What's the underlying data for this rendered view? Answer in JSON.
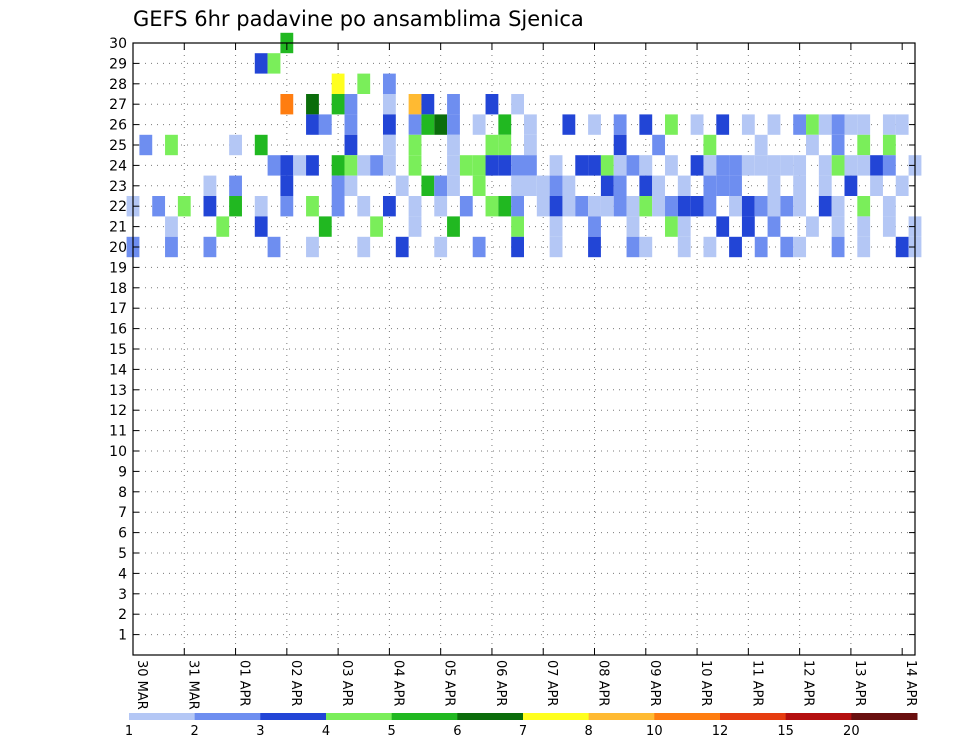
{
  "chart_data": {
    "type": "heatmap",
    "title": "GEFS 6hr padavine po ansamblima Sjenica",
    "x_tick_labels": [
      "30 MAR",
      "31 MAR",
      "01 APR",
      "02 APR",
      "03 APR",
      "04 APR",
      "05 APR",
      "06 APR",
      "07 APR",
      "08 APR",
      "09 APR",
      "10 APR",
      "11 APR",
      "12 APR",
      "13 APR",
      "14 APR"
    ],
    "x_range_hours": [
      0,
      366
    ],
    "y_tick_labels": [
      "1",
      "2",
      "3",
      "4",
      "5",
      "6",
      "7",
      "8",
      "9",
      "10",
      "11",
      "12",
      "13",
      "14",
      "15",
      "16",
      "17",
      "18",
      "19",
      "20",
      "21",
      "22",
      "23",
      "24",
      "25",
      "26",
      "27",
      "28",
      "29",
      "30"
    ],
    "y_range_members": [
      0,
      30
    ],
    "grid": "dotted",
    "legend_placement": "bottom",
    "legend_labels": [
      "1",
      "2",
      "3",
      "4",
      "5",
      "6",
      "7",
      "8",
      "10",
      "12",
      "15",
      "20"
    ],
    "legend_colors": [
      "#b4c7f5",
      "#6e8ef0",
      "#2245d6",
      "#7aee5a",
      "#21b821",
      "#0b6d0b",
      "#ffff1e",
      "#ffba32",
      "#ff7d10",
      "#e63c10",
      "#b40f0f",
      "#690f0f"
    ],
    "cells": [
      [
        72,
        30,
        4
      ],
      [
        60,
        29,
        2
      ],
      [
        66,
        29,
        3
      ],
      [
        96,
        28,
        6
      ],
      [
        108,
        28,
        3
      ],
      [
        120,
        28,
        1
      ],
      [
        72,
        27,
        8
      ],
      [
        84,
        27,
        5
      ],
      [
        96,
        27,
        4
      ],
      [
        102,
        27,
        1
      ],
      [
        120,
        27,
        0
      ],
      [
        132,
        27,
        7
      ],
      [
        138,
        27,
        2
      ],
      [
        150,
        27,
        1
      ],
      [
        168,
        27,
        2
      ],
      [
        180,
        27,
        0
      ],
      [
        84,
        26,
        2
      ],
      [
        90,
        26,
        1
      ],
      [
        102,
        26,
        1
      ],
      [
        120,
        26,
        2
      ],
      [
        132,
        26,
        1
      ],
      [
        138,
        26,
        4
      ],
      [
        144,
        26,
        5
      ],
      [
        150,
        26,
        1
      ],
      [
        162,
        26,
        0
      ],
      [
        174,
        26,
        4
      ],
      [
        186,
        26,
        0
      ],
      [
        204,
        26,
        2
      ],
      [
        216,
        26,
        0
      ],
      [
        228,
        26,
        1
      ],
      [
        240,
        26,
        2
      ],
      [
        252,
        26,
        3
      ],
      [
        264,
        26,
        0
      ],
      [
        276,
        26,
        2
      ],
      [
        288,
        26,
        0
      ],
      [
        300,
        26,
        0
      ],
      [
        312,
        26,
        1
      ],
      [
        318,
        26,
        3
      ],
      [
        324,
        26,
        0
      ],
      [
        330,
        26,
        1
      ],
      [
        336,
        26,
        0
      ],
      [
        342,
        26,
        0
      ],
      [
        354,
        26,
        0
      ],
      [
        360,
        26,
        0
      ],
      [
        6,
        25,
        1
      ],
      [
        18,
        25,
        3
      ],
      [
        48,
        25,
        0
      ],
      [
        60,
        25,
        4
      ],
      [
        102,
        25,
        2
      ],
      [
        120,
        25,
        0
      ],
      [
        132,
        25,
        3
      ],
      [
        150,
        25,
        0
      ],
      [
        168,
        25,
        3
      ],
      [
        174,
        25,
        3
      ],
      [
        186,
        25,
        0
      ],
      [
        228,
        25,
        2
      ],
      [
        246,
        25,
        1
      ],
      [
        270,
        25,
        3
      ],
      [
        294,
        25,
        0
      ],
      [
        318,
        25,
        0
      ],
      [
        330,
        25,
        1
      ],
      [
        342,
        25,
        3
      ],
      [
        354,
        25,
        3
      ],
      [
        66,
        24,
        1
      ],
      [
        72,
        24,
        2
      ],
      [
        78,
        24,
        0
      ],
      [
        84,
        24,
        2
      ],
      [
        96,
        24,
        4
      ],
      [
        102,
        24,
        3
      ],
      [
        108,
        24,
        0
      ],
      [
        114,
        24,
        1
      ],
      [
        120,
        24,
        0
      ],
      [
        132,
        24,
        3
      ],
      [
        150,
        24,
        0
      ],
      [
        156,
        24,
        3
      ],
      [
        162,
        24,
        3
      ],
      [
        168,
        24,
        2
      ],
      [
        174,
        24,
        2
      ],
      [
        180,
        24,
        1
      ],
      [
        186,
        24,
        1
      ],
      [
        198,
        24,
        0
      ],
      [
        210,
        24,
        2
      ],
      [
        216,
        24,
        2
      ],
      [
        222,
        24,
        3
      ],
      [
        228,
        24,
        0
      ],
      [
        234,
        24,
        1
      ],
      [
        240,
        24,
        0
      ],
      [
        252,
        24,
        0
      ],
      [
        264,
        24,
        2
      ],
      [
        270,
        24,
        0
      ],
      [
        276,
        24,
        1
      ],
      [
        282,
        24,
        1
      ],
      [
        288,
        24,
        0
      ],
      [
        294,
        24,
        0
      ],
      [
        300,
        24,
        0
      ],
      [
        306,
        24,
        0
      ],
      [
        312,
        24,
        0
      ],
      [
        324,
        24,
        0
      ],
      [
        330,
        24,
        3
      ],
      [
        336,
        24,
        0
      ],
      [
        342,
        24,
        0
      ],
      [
        348,
        24,
        2
      ],
      [
        354,
        24,
        1
      ],
      [
        366,
        24,
        0
      ],
      [
        36,
        23,
        0
      ],
      [
        48,
        23,
        1
      ],
      [
        72,
        23,
        2
      ],
      [
        96,
        23,
        1
      ],
      [
        102,
        23,
        0
      ],
      [
        126,
        23,
        0
      ],
      [
        138,
        23,
        4
      ],
      [
        144,
        23,
        1
      ],
      [
        150,
        23,
        0
      ],
      [
        162,
        23,
        3
      ],
      [
        180,
        23,
        0
      ],
      [
        186,
        23,
        0
      ],
      [
        192,
        23,
        0
      ],
      [
        198,
        23,
        1
      ],
      [
        204,
        23,
        0
      ],
      [
        222,
        23,
        2
      ],
      [
        228,
        23,
        1
      ],
      [
        240,
        23,
        2
      ],
      [
        246,
        23,
        0
      ],
      [
        258,
        23,
        0
      ],
      [
        270,
        23,
        1
      ],
      [
        276,
        23,
        1
      ],
      [
        282,
        23,
        1
      ],
      [
        300,
        23,
        0
      ],
      [
        312,
        23,
        0
      ],
      [
        324,
        23,
        0
      ],
      [
        336,
        23,
        2
      ],
      [
        348,
        23,
        0
      ],
      [
        360,
        23,
        0
      ],
      [
        0,
        22,
        0
      ],
      [
        12,
        22,
        1
      ],
      [
        24,
        22,
        3
      ],
      [
        36,
        22,
        2
      ],
      [
        48,
        22,
        4
      ],
      [
        60,
        22,
        0
      ],
      [
        72,
        22,
        1
      ],
      [
        84,
        22,
        3
      ],
      [
        96,
        22,
        1
      ],
      [
        108,
        22,
        0
      ],
      [
        120,
        22,
        2
      ],
      [
        132,
        22,
        0
      ],
      [
        144,
        22,
        0
      ],
      [
        156,
        22,
        1
      ],
      [
        168,
        22,
        3
      ],
      [
        174,
        22,
        4
      ],
      [
        180,
        22,
        1
      ],
      [
        192,
        22,
        0
      ],
      [
        198,
        22,
        2
      ],
      [
        204,
        22,
        0
      ],
      [
        210,
        22,
        1
      ],
      [
        216,
        22,
        0
      ],
      [
        222,
        22,
        0
      ],
      [
        228,
        22,
        1
      ],
      [
        234,
        22,
        0
      ],
      [
        240,
        22,
        3
      ],
      [
        246,
        22,
        0
      ],
      [
        252,
        22,
        1
      ],
      [
        258,
        22,
        2
      ],
      [
        264,
        22,
        2
      ],
      [
        270,
        22,
        1
      ],
      [
        282,
        22,
        0
      ],
      [
        288,
        22,
        2
      ],
      [
        294,
        22,
        1
      ],
      [
        300,
        22,
        0
      ],
      [
        306,
        22,
        1
      ],
      [
        312,
        22,
        0
      ],
      [
        324,
        22,
        2
      ],
      [
        330,
        22,
        0
      ],
      [
        342,
        22,
        3
      ],
      [
        354,
        22,
        0
      ],
      [
        18,
        21,
        0
      ],
      [
        42,
        21,
        3
      ],
      [
        60,
        21,
        2
      ],
      [
        90,
        21,
        4
      ],
      [
        114,
        21,
        3
      ],
      [
        132,
        21,
        0
      ],
      [
        150,
        21,
        4
      ],
      [
        180,
        21,
        3
      ],
      [
        198,
        21,
        0
      ],
      [
        216,
        21,
        1
      ],
      [
        234,
        21,
        0
      ],
      [
        252,
        21,
        3
      ],
      [
        258,
        21,
        0
      ],
      [
        276,
        21,
        2
      ],
      [
        288,
        21,
        2
      ],
      [
        300,
        21,
        1
      ],
      [
        318,
        21,
        0
      ],
      [
        330,
        21,
        0
      ],
      [
        342,
        21,
        0
      ],
      [
        354,
        21,
        0
      ],
      [
        366,
        21,
        0
      ],
      [
        0,
        20,
        1
      ],
      [
        18,
        20,
        1
      ],
      [
        36,
        20,
        1
      ],
      [
        66,
        20,
        1
      ],
      [
        84,
        20,
        0
      ],
      [
        108,
        20,
        0
      ],
      [
        126,
        20,
        2
      ],
      [
        144,
        20,
        0
      ],
      [
        162,
        20,
        1
      ],
      [
        180,
        20,
        2
      ],
      [
        198,
        20,
        0
      ],
      [
        216,
        20,
        2
      ],
      [
        234,
        20,
        1
      ],
      [
        240,
        20,
        0
      ],
      [
        258,
        20,
        0
      ],
      [
        270,
        20,
        0
      ],
      [
        282,
        20,
        2
      ],
      [
        294,
        20,
        1
      ],
      [
        306,
        20,
        1
      ],
      [
        312,
        20,
        0
      ],
      [
        330,
        20,
        1
      ],
      [
        342,
        20,
        0
      ],
      [
        360,
        20,
        2
      ],
      [
        366,
        20,
        0
      ]
    ]
  }
}
